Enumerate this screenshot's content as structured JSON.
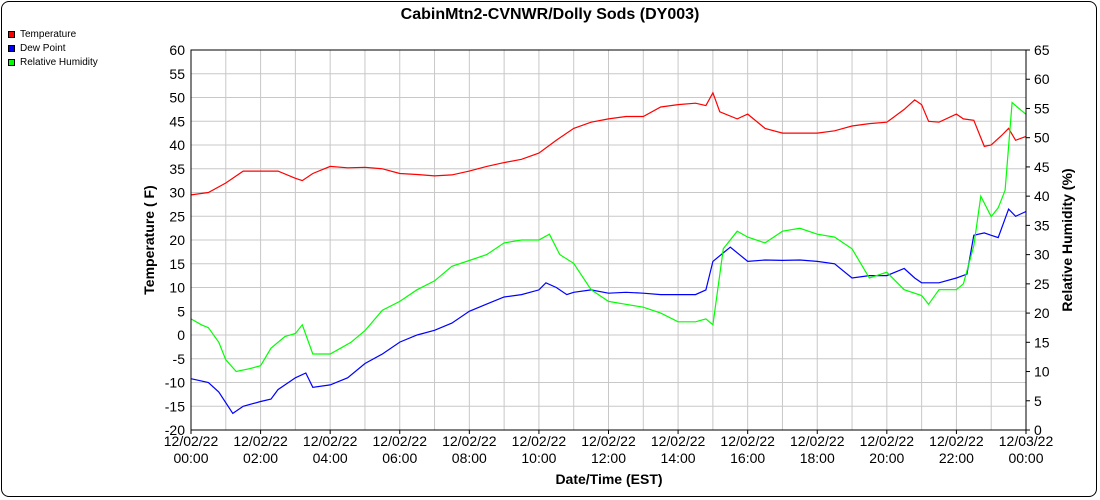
{
  "chart_data": {
    "type": "line",
    "title": "CabinMtn2-CVNWR/Dolly Sods (DY003)",
    "xlabel": "Date/Time (EST)",
    "ylabel_left": "Temperature ( F)",
    "ylabel_right": "Relative Humidity (%)",
    "ylim_left": [
      -20,
      60
    ],
    "ylim_right": [
      0,
      65
    ],
    "yticks_left": [
      "60",
      "55",
      "50",
      "45",
      "40",
      "35",
      "30",
      "25",
      "20",
      "15",
      "10",
      "5",
      "0",
      "-5",
      "-10",
      "-15",
      "-20"
    ],
    "yticks_right": [
      "65",
      "60",
      "55",
      "50",
      "45",
      "40",
      "35",
      "30",
      "25",
      "20",
      "15",
      "10",
      "5",
      "0"
    ],
    "xlim_hours": [
      0,
      24
    ],
    "grid": true,
    "legend_placement": "top-left outside",
    "x_ticks": [
      {
        "date": "12/02/22",
        "time": "00:00"
      },
      {
        "date": "12/02/22",
        "time": "02:00"
      },
      {
        "date": "12/02/22",
        "time": "04:00"
      },
      {
        "date": "12/02/22",
        "time": "06:00"
      },
      {
        "date": "12/02/22",
        "time": "08:00"
      },
      {
        "date": "12/02/22",
        "time": "10:00"
      },
      {
        "date": "12/02/22",
        "time": "12:00"
      },
      {
        "date": "12/02/22",
        "time": "14:00"
      },
      {
        "date": "12/02/22",
        "time": "16:00"
      },
      {
        "date": "12/02/22",
        "time": "18:00"
      },
      {
        "date": "12/02/22",
        "time": "20:00"
      },
      {
        "date": "12/02/22",
        "time": "22:00"
      },
      {
        "date": "12/03/22",
        "time": "00:00"
      }
    ],
    "series": [
      {
        "name": "Temperature",
        "axis": "left",
        "color": "#ff0000",
        "points": [
          [
            0,
            29.5
          ],
          [
            0.5,
            30
          ],
          [
            1,
            32
          ],
          [
            1.5,
            34.5
          ],
          [
            2,
            34.5
          ],
          [
            2.5,
            34.5
          ],
          [
            3,
            33
          ],
          [
            3.2,
            32.5
          ],
          [
            3.5,
            34
          ],
          [
            4,
            35.5
          ],
          [
            4.5,
            35.2
          ],
          [
            5,
            35.3
          ],
          [
            5.5,
            35
          ],
          [
            6,
            34
          ],
          [
            6.5,
            33.8
          ],
          [
            7,
            33.5
          ],
          [
            7.5,
            33.7
          ],
          [
            8,
            34.5
          ],
          [
            8.5,
            35.5
          ],
          [
            9,
            36.3
          ],
          [
            9.5,
            37
          ],
          [
            10,
            38.3
          ],
          [
            10.5,
            41
          ],
          [
            11,
            43.5
          ],
          [
            11.5,
            44.8
          ],
          [
            12,
            45.5
          ],
          [
            12.5,
            46
          ],
          [
            13,
            46
          ],
          [
            13.5,
            48
          ],
          [
            14,
            48.5
          ],
          [
            14.5,
            48.8
          ],
          [
            14.8,
            48.3
          ],
          [
            15,
            51
          ],
          [
            15.2,
            47
          ],
          [
            15.7,
            45.5
          ],
          [
            16,
            46.5
          ],
          [
            16.5,
            43.5
          ],
          [
            17,
            42.5
          ],
          [
            17.5,
            42.5
          ],
          [
            18,
            42.5
          ],
          [
            18.5,
            43
          ],
          [
            19,
            44
          ],
          [
            19.5,
            44.5
          ],
          [
            20,
            44.8
          ],
          [
            20.5,
            47.5
          ],
          [
            20.8,
            49.5
          ],
          [
            21,
            48.5
          ],
          [
            21.2,
            45
          ],
          [
            21.5,
            44.8
          ],
          [
            22,
            46.5
          ],
          [
            22.2,
            45.5
          ],
          [
            22.5,
            45.2
          ],
          [
            22.8,
            39.7
          ],
          [
            23,
            40
          ],
          [
            23.3,
            42
          ],
          [
            23.5,
            43.5
          ],
          [
            23.7,
            41
          ],
          [
            24,
            41.8
          ]
        ]
      },
      {
        "name": "Dew Point",
        "axis": "left",
        "color": "#0000ff",
        "points": [
          [
            0,
            -9.2
          ],
          [
            0.5,
            -10
          ],
          [
            0.8,
            -12
          ],
          [
            1.2,
            -16.5
          ],
          [
            1.5,
            -15
          ],
          [
            2,
            -14
          ],
          [
            2.3,
            -13.5
          ],
          [
            2.5,
            -11.5
          ],
          [
            3,
            -9
          ],
          [
            3.3,
            -8
          ],
          [
            3.5,
            -11
          ],
          [
            4,
            -10.5
          ],
          [
            4.5,
            -9
          ],
          [
            5,
            -6
          ],
          [
            5.5,
            -4
          ],
          [
            6,
            -1.5
          ],
          [
            6.5,
            0
          ],
          [
            7,
            1
          ],
          [
            7.5,
            2.5
          ],
          [
            8,
            5
          ],
          [
            8.5,
            6.5
          ],
          [
            9,
            8
          ],
          [
            9.5,
            8.5
          ],
          [
            10,
            9.5
          ],
          [
            10.2,
            11
          ],
          [
            10.5,
            10
          ],
          [
            10.8,
            8.5
          ],
          [
            11,
            9
          ],
          [
            11.5,
            9.5
          ],
          [
            12,
            8.8
          ],
          [
            12.5,
            9
          ],
          [
            13,
            8.8
          ],
          [
            13.5,
            8.5
          ],
          [
            14,
            8.5
          ],
          [
            14.5,
            8.5
          ],
          [
            14.8,
            9.5
          ],
          [
            15,
            15.5
          ],
          [
            15.5,
            18.5
          ],
          [
            16,
            15.5
          ],
          [
            16.5,
            15.8
          ],
          [
            17,
            15.7
          ],
          [
            17.5,
            15.8
          ],
          [
            18,
            15.5
          ],
          [
            18.5,
            15
          ],
          [
            19,
            12
          ],
          [
            19.5,
            12.5
          ],
          [
            20,
            12.5
          ],
          [
            20.5,
            14
          ],
          [
            20.8,
            12
          ],
          [
            21,
            11
          ],
          [
            21.5,
            11
          ],
          [
            22,
            12
          ],
          [
            22.3,
            12.8
          ],
          [
            22.5,
            21
          ],
          [
            22.8,
            21.5
          ],
          [
            23,
            21
          ],
          [
            23.2,
            20.5
          ],
          [
            23.5,
            26.5
          ],
          [
            23.7,
            25
          ],
          [
            24,
            26
          ]
        ]
      },
      {
        "name": "Relative Humidity",
        "axis": "right",
        "color": "#00ff00",
        "points": [
          [
            0,
            19
          ],
          [
            0.3,
            18
          ],
          [
            0.5,
            17.5
          ],
          [
            0.8,
            15
          ],
          [
            1,
            12
          ],
          [
            1.3,
            10
          ],
          [
            1.7,
            10.5
          ],
          [
            2,
            11
          ],
          [
            2.3,
            14
          ],
          [
            2.7,
            16
          ],
          [
            3,
            16.5
          ],
          [
            3.2,
            18
          ],
          [
            3.5,
            13
          ],
          [
            4,
            13
          ],
          [
            4.3,
            14
          ],
          [
            4.6,
            15
          ],
          [
            5,
            17
          ],
          [
            5.5,
            20.5
          ],
          [
            6,
            22
          ],
          [
            6.5,
            24
          ],
          [
            7,
            25.5
          ],
          [
            7.5,
            28
          ],
          [
            8,
            29
          ],
          [
            8.5,
            30
          ],
          [
            9,
            32
          ],
          [
            9.5,
            32.5
          ],
          [
            10,
            32.5
          ],
          [
            10.3,
            33.5
          ],
          [
            10.6,
            30
          ],
          [
            11,
            28.5
          ],
          [
            11.5,
            24
          ],
          [
            12,
            22
          ],
          [
            12.5,
            21.5
          ],
          [
            13,
            21
          ],
          [
            13.5,
            20
          ],
          [
            14,
            18.5
          ],
          [
            14.5,
            18.5
          ],
          [
            14.8,
            19
          ],
          [
            15,
            18
          ],
          [
            15.3,
            31
          ],
          [
            15.7,
            34
          ],
          [
            16,
            33
          ],
          [
            16.5,
            32
          ],
          [
            17,
            34
          ],
          [
            17.5,
            34.5
          ],
          [
            18,
            33.5
          ],
          [
            18.5,
            33
          ],
          [
            19,
            31
          ],
          [
            19.5,
            26
          ],
          [
            20,
            27
          ],
          [
            20.5,
            24
          ],
          [
            21,
            23
          ],
          [
            21.2,
            21.5
          ],
          [
            21.5,
            24
          ],
          [
            22,
            24
          ],
          [
            22.2,
            25
          ],
          [
            22.5,
            31.5
          ],
          [
            22.7,
            40
          ],
          [
            23,
            36.5
          ],
          [
            23.2,
            38
          ],
          [
            23.4,
            41
          ],
          [
            23.6,
            56
          ],
          [
            23.8,
            55
          ],
          [
            24,
            54
          ]
        ]
      }
    ]
  }
}
